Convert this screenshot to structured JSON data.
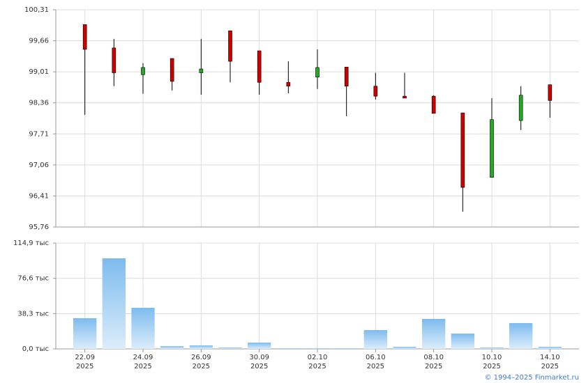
{
  "chart_data": [
    {
      "type": "candlestick",
      "categories": [
        "22.09",
        null,
        "24.09",
        null,
        "26.09",
        null,
        "30.09",
        null,
        "02.10",
        null,
        "06.10",
        null,
        "08.10",
        null,
        "10.10",
        null,
        "14.10"
      ],
      "open": [
        100.0,
        99.51,
        98.95,
        99.29,
        98.99,
        99.87,
        99.45,
        98.79,
        98.9,
        99.11,
        98.71,
        98.5,
        98.5,
        98.15,
        96.8,
        97.99,
        98.74
      ],
      "high": [
        100.0,
        99.7,
        99.19,
        99.29,
        99.7,
        99.87,
        99.45,
        99.23,
        99.48,
        99.11,
        98.99,
        98.99,
        98.52,
        98.15,
        98.46,
        98.71,
        98.74
      ],
      "low": [
        98.11,
        98.71,
        98.55,
        98.62,
        98.53,
        98.79,
        98.53,
        98.56,
        98.65,
        98.08,
        98.43,
        98.46,
        98.14,
        96.08,
        96.8,
        97.79,
        98.05
      ],
      "close": [
        99.48,
        98.99,
        99.1,
        98.81,
        99.07,
        99.23,
        98.79,
        98.71,
        99.1,
        98.71,
        98.5,
        98.46,
        98.14,
        96.59,
        98.01,
        98.52,
        98.41
      ],
      "up_color": "#22aa22",
      "down_color": "#cc0000",
      "ylim": [
        95.76,
        100.31
      ],
      "yticks": [
        {
          "value": 95.76,
          "label": "95,76"
        },
        {
          "value": 96.41,
          "label": "96,41"
        },
        {
          "value": 97.06,
          "label": "97,06"
        },
        {
          "value": 97.71,
          "label": "97,71"
        },
        {
          "value": 98.36,
          "label": "98,36"
        },
        {
          "value": 99.01,
          "label": "99,01"
        },
        {
          "value": 99.66,
          "label": "99,66"
        },
        {
          "value": 100.31,
          "label": "100,31"
        }
      ],
      "grid": true
    },
    {
      "type": "bar",
      "categories": [
        "22.09",
        null,
        "24.09",
        null,
        "26.09",
        null,
        "30.09",
        null,
        "02.10",
        null,
        "06.10",
        null,
        "08.10",
        null,
        "10.10",
        null,
        "14.10"
      ],
      "x_sublabels": [
        "2025",
        null,
        "2025",
        null,
        "2025",
        null,
        "2025",
        null,
        "2025",
        null,
        "2025",
        null,
        "2025",
        null,
        "2025",
        null,
        "2025"
      ],
      "values": [
        33.3,
        98.3,
        44.6,
        3.0,
        3.8,
        1.5,
        6.8,
        0.8,
        0.8,
        0.8,
        20.4,
        2.3,
        32.5,
        16.6,
        1.5,
        28.0,
        2.3
      ],
      "color": "#7dbbee",
      "ylim": [
        0,
        114.9
      ],
      "yticks": [
        {
          "value": 0,
          "label": "0,0 тыс"
        },
        {
          "value": 38.3,
          "label": "38,3 тыс"
        },
        {
          "value": 76.6,
          "label": "76,6 тыс"
        },
        {
          "value": 114.9,
          "label": "114,9 тыс"
        }
      ],
      "grid": true,
      "footer": "© 1994–2025 Finmarket.ru"
    }
  ]
}
